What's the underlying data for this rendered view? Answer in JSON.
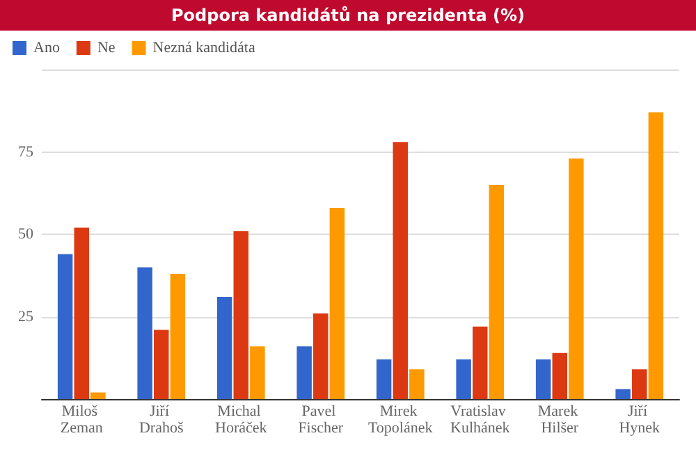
{
  "chart_data": {
    "type": "bar",
    "title": "Podpora kandidátů na prezidenta (%)",
    "categories": [
      "Miloš Zeman",
      "Jiří Drahoš",
      "Michal Horáček",
      "Pavel Fischer",
      "Mirek Topolánek",
      "Vratislav Kulhánek",
      "Marek Hilšer",
      "Jiří Hynek"
    ],
    "series": [
      {
        "name": "Ano",
        "color": "#3366cc",
        "values": [
          44,
          40,
          31,
          16,
          12,
          12,
          12,
          3
        ]
      },
      {
        "name": "Ne",
        "color": "#dc3912",
        "values": [
          52,
          21,
          51,
          26,
          78,
          22,
          14,
          9
        ]
      },
      {
        "name": "Nezná kandidáta",
        "color": "#ff9900",
        "values": [
          2,
          38,
          16,
          58,
          9,
          65,
          73,
          87
        ]
      }
    ],
    "ylim": [
      0,
      100
    ],
    "yticks": [
      {
        "value": 0,
        "label": null
      },
      25,
      50,
      75,
      {
        "value": 100,
        "label": null
      }
    ],
    "grid": "y",
    "legend": "top left"
  }
}
